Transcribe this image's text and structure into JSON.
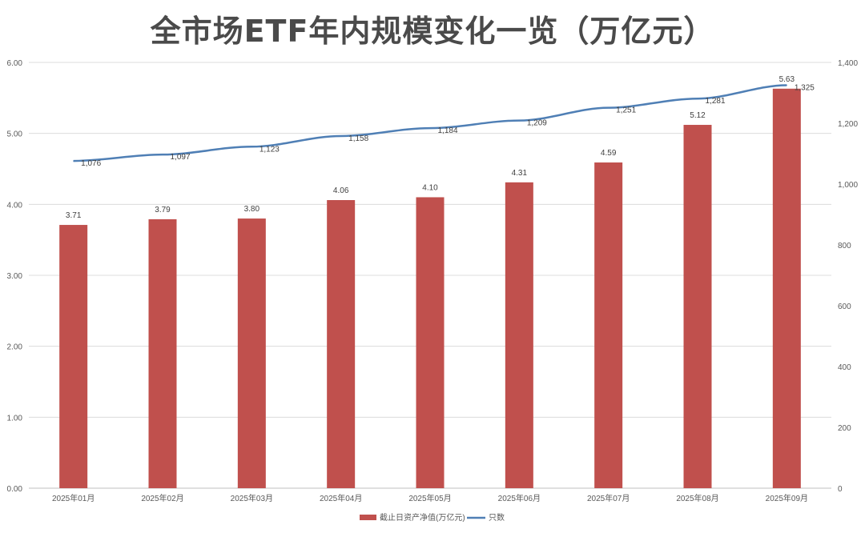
{
  "chart_data": {
    "type": "bar+line",
    "title": "全市场ETF年内规模变化一览（万亿元）",
    "categories": [
      "2025年01月",
      "2025年02月",
      "2025年03月",
      "2025年04月",
      "2025年05月",
      "2025年06月",
      "2025年07月",
      "2025年08月",
      "2025年09月"
    ],
    "series": [
      {
        "name": "截止日资产净值(万亿元)",
        "type": "bar",
        "axis": "left",
        "color": "#c0504d",
        "values": [
          3.71,
          3.79,
          3.8,
          4.06,
          4.1,
          4.31,
          4.59,
          5.12,
          5.63
        ],
        "labels": [
          "3.71",
          "3.79",
          "3.80",
          "4.06",
          "4.10",
          "4.31",
          "4.59",
          "5.12",
          "5.63"
        ]
      },
      {
        "name": "只数",
        "type": "line",
        "axis": "right",
        "color": "#4f7fb5",
        "values": [
          1076,
          1097,
          1123,
          1158,
          1184,
          1209,
          1251,
          1281,
          1325
        ],
        "labels": [
          "1,076",
          "1,097",
          "1,123",
          "1,158",
          "1,184",
          "1,209",
          "1,251",
          "1,281",
          "1,325"
        ]
      }
    ],
    "y_left": {
      "range": [
        0,
        6
      ],
      "ticks": [
        "0.00",
        "1.00",
        "2.00",
        "3.00",
        "4.00",
        "5.00",
        "6.00"
      ]
    },
    "y_right": {
      "range": [
        0,
        1400
      ],
      "ticks": [
        "0",
        "200",
        "400",
        "600",
        "800",
        "1,000",
        "1,200",
        "1,400"
      ]
    },
    "grid": true,
    "legend": "bottom"
  }
}
